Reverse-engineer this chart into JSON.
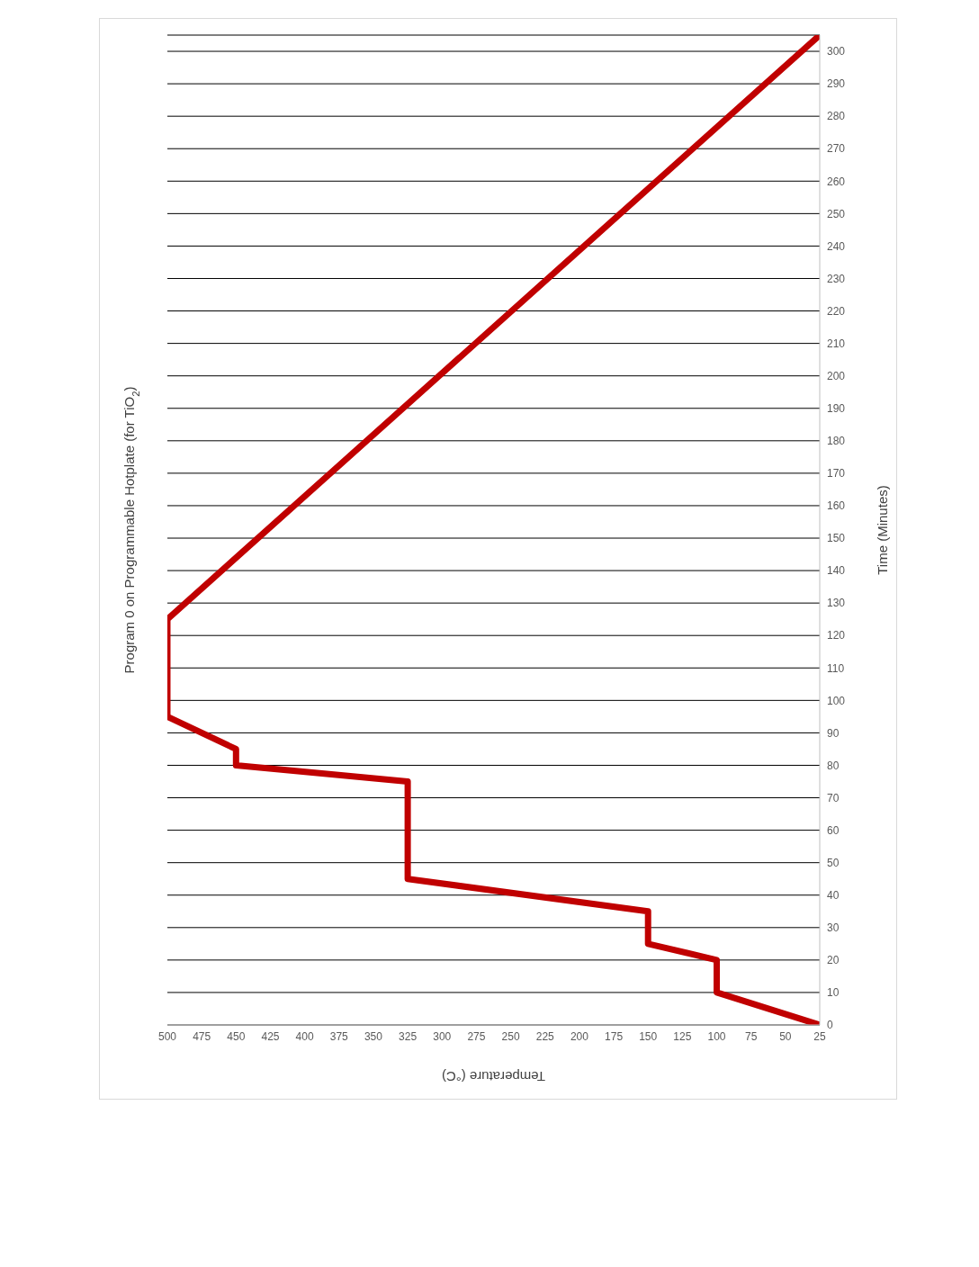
{
  "chart_data": {
    "type": "line",
    "title": "Program 0 on Programmable Hotplate (for TiO$_{2}$)",
    "xlabel": "Temperature (°C)",
    "ylabel": "Time (Minutes)",
    "x": [
      25,
      100,
      100,
      150,
      150,
      325,
      325,
      450,
      450,
      500,
      500,
      25
    ],
    "series": [
      {
        "color": "#c00000",
        "values": [
          0,
          10,
          20,
          25,
          35,
          45,
          75,
          80,
          85,
          95,
          125,
          305
        ]
      }
    ],
    "xlim": [
      500,
      25
    ],
    "xticks": [
      25,
      50,
      75,
      100,
      125,
      150,
      175,
      200,
      225,
      250,
      275,
      300,
      325,
      350,
      375,
      400,
      425,
      450,
      475,
      500
    ],
    "ylim": [
      0,
      305
    ],
    "yticks": [
      0,
      10,
      20,
      30,
      40,
      50,
      60,
      70,
      80,
      90,
      100,
      110,
      120,
      130,
      140,
      150,
      160,
      170,
      180,
      190,
      200,
      210,
      220,
      230,
      240,
      250,
      260,
      270,
      280,
      290,
      300
    ],
    "grid": "y",
    "marker": "none",
    "line_style": "solid",
    "legend": false
  }
}
